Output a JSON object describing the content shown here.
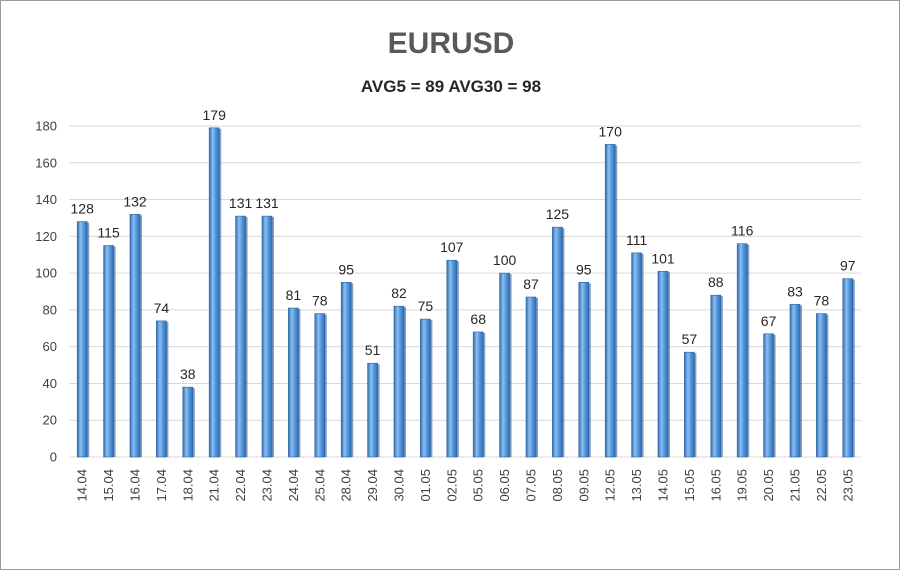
{
  "chart_data": {
    "type": "bar",
    "title": "EURUSD",
    "subtitle": "AVG5 = 89 AVG30 = 98",
    "xlabel": "",
    "ylabel": "",
    "ylim": [
      0,
      180
    ],
    "yticks": [
      0,
      20,
      40,
      60,
      80,
      100,
      120,
      140,
      160,
      180
    ],
    "grid": true,
    "categories": [
      "14.04",
      "15.04",
      "16.04",
      "17.04",
      "18.04",
      "21.04",
      "22.04",
      "23.04",
      "24.04",
      "25.04",
      "28.04",
      "29.04",
      "30.04",
      "01.05",
      "02.05",
      "05.05",
      "06.05",
      "07.05",
      "08.05",
      "09.05",
      "12.05",
      "13.05",
      "14.05",
      "15.05",
      "16.05",
      "19.05",
      "20.05",
      "21.05",
      "22.05",
      "23.05"
    ],
    "values": [
      128,
      115,
      132,
      74,
      38,
      179,
      131,
      131,
      81,
      78,
      95,
      51,
      82,
      75,
      107,
      68,
      100,
      87,
      125,
      95,
      170,
      111,
      101,
      57,
      88,
      116,
      67,
      83,
      78,
      97
    ],
    "colors": {
      "bar": "#4f8fd6",
      "bar_dark": "#2e6db4",
      "bar_light": "#8ebfee",
      "grid": "#d9d9d9"
    }
  }
}
